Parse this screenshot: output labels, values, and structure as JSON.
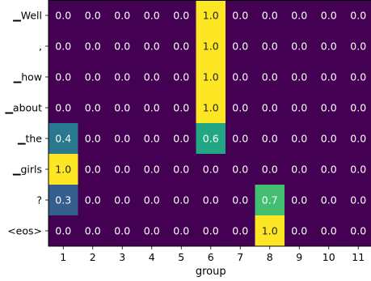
{
  "chart_data": {
    "type": "heatmap",
    "title": "",
    "xlabel": "group",
    "ylabel": "",
    "x_categories": [
      "1",
      "2",
      "3",
      "4",
      "5",
      "6",
      "7",
      "8",
      "9",
      "10",
      "11"
    ],
    "y_categories": [
      "▁Well",
      ",",
      "▁how",
      "▁about",
      "▁the",
      "▁girls",
      "?",
      "<eos>"
    ],
    "values": [
      [
        0.0,
        0.0,
        0.0,
        0.0,
        0.0,
        1.0,
        0.0,
        0.0,
        0.0,
        0.0,
        0.0
      ],
      [
        0.0,
        0.0,
        0.0,
        0.0,
        0.0,
        1.0,
        0.0,
        0.0,
        0.0,
        0.0,
        0.0
      ],
      [
        0.0,
        0.0,
        0.0,
        0.0,
        0.0,
        1.0,
        0.0,
        0.0,
        0.0,
        0.0,
        0.0
      ],
      [
        0.0,
        0.0,
        0.0,
        0.0,
        0.0,
        1.0,
        0.0,
        0.0,
        0.0,
        0.0,
        0.0
      ],
      [
        0.4,
        0.0,
        0.0,
        0.0,
        0.0,
        0.6,
        0.0,
        0.0,
        0.0,
        0.0,
        0.0
      ],
      [
        1.0,
        0.0,
        0.0,
        0.0,
        0.0,
        0.0,
        0.0,
        0.0,
        0.0,
        0.0,
        0.0
      ],
      [
        0.3,
        0.0,
        0.0,
        0.0,
        0.0,
        0.0,
        0.0,
        0.7,
        0.0,
        0.0,
        0.0
      ],
      [
        0.0,
        0.0,
        0.0,
        0.0,
        0.0,
        0.0,
        0.0,
        1.0,
        0.0,
        0.0,
        0.0
      ]
    ],
    "value_range": [
      0.0,
      1.0
    ],
    "colormap": "viridis",
    "grid": false,
    "legend": "none"
  }
}
